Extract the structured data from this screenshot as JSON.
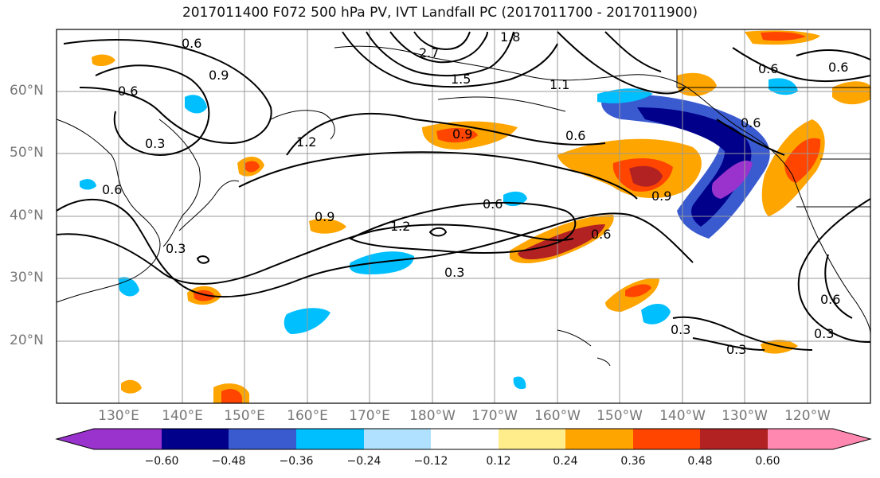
{
  "title": "2017011400 F072 500 hPa PV, IVT Landfall PC (2017011700 - 2017011900)",
  "lat_labels": [
    "60°N",
    "50°N",
    "40°N",
    "30°N",
    "20°N"
  ],
  "lon_labels": [
    "130°E",
    "140°E",
    "150°E",
    "160°E",
    "170°E",
    "180°W",
    "170°W",
    "160°W",
    "150°W",
    "140°W",
    "130°W",
    "120°W"
  ],
  "contour_labels": [
    "0.6",
    "0.9",
    "0.6",
    "0.3",
    "0.6",
    "1.2",
    "2.7",
    "1.5",
    "1.8",
    "1.1",
    "0.9",
    "0.6",
    "0.6",
    "0.6",
    "0.9",
    "1.2",
    "0.6",
    "0.9",
    "0.3",
    "0.3",
    "0.3",
    "0.6",
    "0.3",
    "0.6",
    "0.3",
    "0.6"
  ],
  "colorbar": {
    "tick_labels": [
      "−0.60",
      "−0.48",
      "−0.36",
      "−0.24",
      "−0.12",
      "0.12",
      "0.24",
      "0.36",
      "0.48",
      "0.60"
    ],
    "colors": [
      "#9a32cd",
      "#00008b",
      "#3a5bd0",
      "#00bfff",
      "#b0e2ff",
      "#ffffff",
      "#ffec8b",
      "#ffa500",
      "#ff4500",
      "#b22222",
      "#ff88b0"
    ]
  },
  "colors": {
    "grid": "#999999",
    "contour": "#000000",
    "coast": "#000000"
  }
}
